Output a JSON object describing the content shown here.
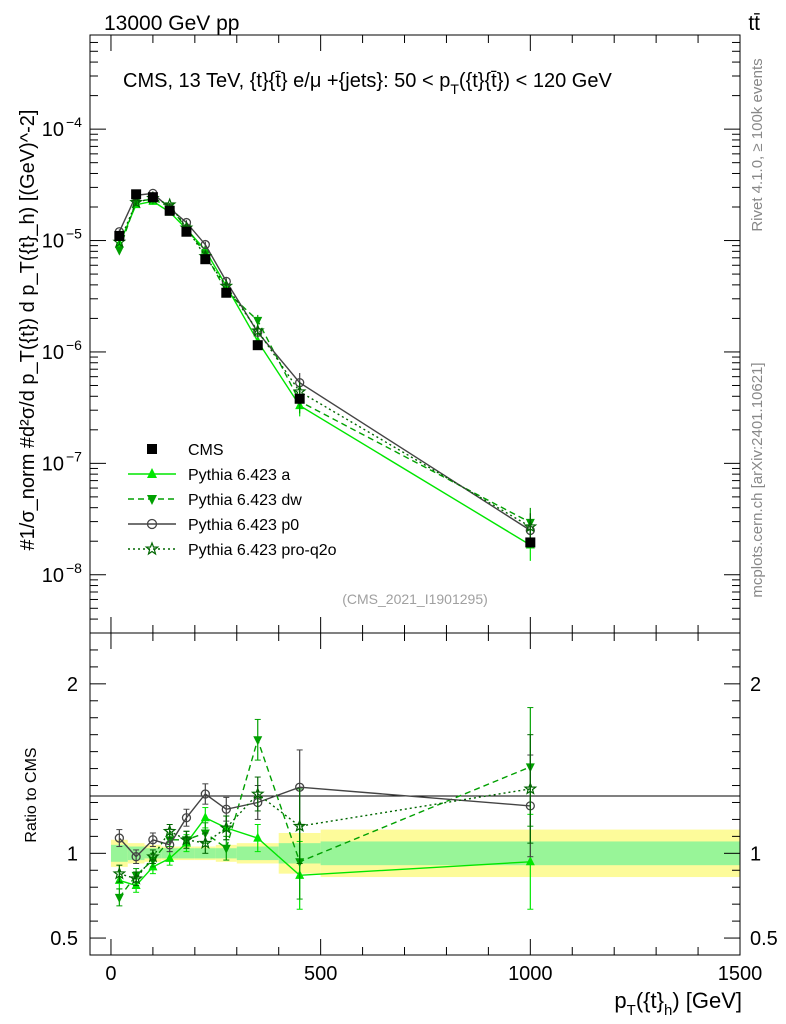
{
  "header": {
    "left": "13000 GeV pp",
    "right": "tt̄"
  },
  "side_labels": {
    "rivet": "Rivet 4.1.0, ≥ 100k events",
    "mcplots": "mcplots.cern.ch [arXiv:2401.10621]"
  },
  "chart_data": [
    {
      "type": "line",
      "panel": "main",
      "title": "CMS, 13 TeV, {t}{t̄} e/μ +{jets}: 50 < p_T({t}{t̄}) < 120 GeV",
      "title_main": "CMS, 13 TeV, {t}{",
      "title_tbar": "t̄",
      "title_mid": "} e/μ +{jets}: 50 <  p",
      "title_sub": "T",
      "title_end": "({t}{t̄}) < 120 GeV",
      "ylabel": "#1/σ_norm #d²σ/d p_T({t}) d p_T({t}_h) [(GeV)^-2]",
      "xlabel": "p_T({t}_h) [GeV]",
      "yscale": "log",
      "ylim": [
        3e-09,
        0.0007
      ],
      "xlim": [
        -50,
        1500
      ],
      "yticks": [
        {
          "v": 1e-08,
          "label": "10",
          "exp": "−8"
        },
        {
          "v": 1e-07,
          "label": "10",
          "exp": "−7"
        },
        {
          "v": 1e-06,
          "label": "10",
          "exp": "−6"
        },
        {
          "v": 1e-05,
          "label": "10",
          "exp": "−5"
        },
        {
          "v": 0.0001,
          "label": "10",
          "exp": "−4"
        }
      ],
      "watermark": "(CMS_2021_I1901295)",
      "x": [
        20,
        60,
        100,
        140,
        180,
        225,
        275,
        350,
        450,
        1000
      ],
      "series": [
        {
          "name": "CMS",
          "color": "#000000",
          "marker": "square",
          "line": "none",
          "values": [
            1.1e-05,
            2.6e-05,
            2.45e-05,
            1.85e-05,
            1.2e-05,
            6.8e-06,
            3.4e-06,
            1.15e-06,
            3.8e-07,
            1.95e-08
          ]
        },
        {
          "name": "Pythia 6.423 a",
          "color": "#00e600",
          "marker": "triangle-up",
          "line": "solid",
          "values": [
            9.3e-06,
            2.1e-05,
            2.25e-05,
            1.8e-05,
            1.27e-05,
            8.2e-06,
            3.9e-06,
            1.25e-06,
            3.3e-07,
            1.85e-08
          ]
        },
        {
          "name": "Pythia 6.423 dw",
          "color": "#00a000",
          "marker": "triangle-down",
          "line": "dashed",
          "values": [
            8.2e-06,
            2.25e-05,
            2.35e-05,
            2e-05,
            1.3e-05,
            7.6e-06,
            3.5e-06,
            1.92e-06,
            3.6e-07,
            2.95e-08
          ]
        },
        {
          "name": "Pythia 6.423 p0",
          "color": "#444444",
          "marker": "circle-open",
          "line": "solid",
          "values": [
            1.2e-05,
            2.55e-05,
            2.65e-05,
            1.95e-05,
            1.45e-05,
            9.2e-06,
            4.3e-06,
            1.5e-06,
            5.3e-07,
            2.5e-08
          ]
        },
        {
          "name": "Pythia 6.423 pro-q2o",
          "color": "#006600",
          "marker": "star-open",
          "line": "dotted",
          "values": [
            9.7e-06,
            2.2e-05,
            2.4e-05,
            2.1e-05,
            1.3e-05,
            7.2e-06,
            3.9e-06,
            1.55e-06,
            4.4e-07,
            2.7e-08
          ]
        }
      ]
    },
    {
      "type": "line",
      "panel": "ratio",
      "ylabel": "Ratio to CMS",
      "ylim": [
        0.4,
        2.3
      ],
      "yticks": [
        0.5,
        1,
        2
      ],
      "xticks": [
        0,
        500,
        1000,
        1500
      ],
      "x": [
        20,
        60,
        100,
        140,
        180,
        225,
        275,
        350,
        450,
        1000
      ],
      "series": [
        {
          "name": "Pythia 6.423 a",
          "values": [
            0.84,
            0.81,
            0.92,
            0.97,
            1.06,
            1.21,
            1.15,
            1.09,
            0.87,
            0.95
          ],
          "errors": [
            0.05,
            0.04,
            0.04,
            0.04,
            0.05,
            0.06,
            0.07,
            0.08,
            0.2,
            0.28
          ]
        },
        {
          "name": "Pythia 6.423 dw",
          "values": [
            0.74,
            0.87,
            0.96,
            1.08,
            1.08,
            1.12,
            1.03,
            1.67,
            0.95,
            1.51
          ],
          "errors": [
            0.05,
            0.04,
            0.04,
            0.04,
            0.05,
            0.06,
            0.07,
            0.12,
            0.22,
            0.35
          ]
        },
        {
          "name": "Pythia 6.423 p0",
          "values": [
            1.09,
            0.98,
            1.08,
            1.05,
            1.21,
            1.35,
            1.26,
            1.3,
            1.39,
            1.28
          ],
          "errors": [
            0.05,
            0.04,
            0.04,
            0.04,
            0.05,
            0.06,
            0.07,
            0.1,
            0.22,
            0.3
          ]
        },
        {
          "name": "Pythia 6.423 pro-q2o",
          "values": [
            0.88,
            0.85,
            0.98,
            1.13,
            1.08,
            1.06,
            1.15,
            1.35,
            1.16,
            1.38
          ],
          "errors": [
            0.05,
            0.04,
            0.04,
            0.04,
            0.05,
            0.06,
            0.07,
            0.1,
            0.22,
            0.32
          ]
        }
      ],
      "bands": {
        "edges": [
          0,
          40,
          80,
          120,
          160,
          200,
          250,
          300,
          400,
          500,
          1500
        ],
        "inner": [
          0.05,
          0.04,
          0.03,
          0.03,
          0.03,
          0.03,
          0.03,
          0.04,
          0.06,
          0.07
        ],
        "outer": [
          0.08,
          0.06,
          0.05,
          0.04,
          0.04,
          0.04,
          0.05,
          0.06,
          0.12,
          0.14
        ],
        "inner_color": "#98f598",
        "outer_color": "#fdfb9a"
      }
    }
  ]
}
